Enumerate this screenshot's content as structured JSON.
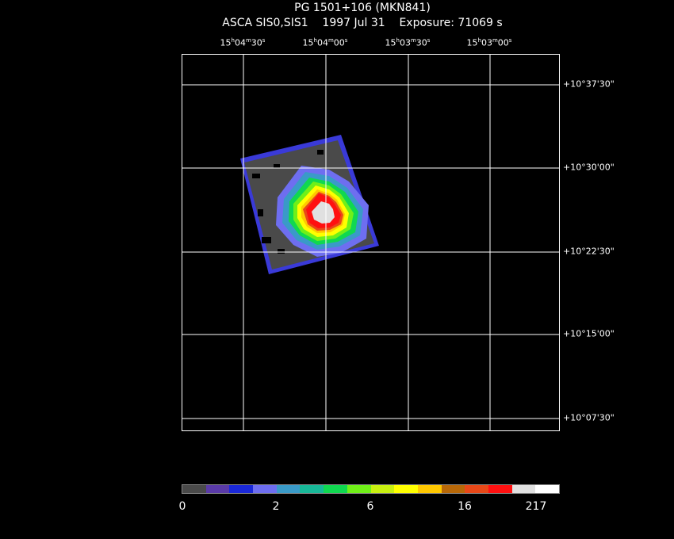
{
  "title_line1": "PG 1501+106 (MKN841)",
  "title_line2": "ASCA SIS0,SIS1    1997 Jul 31    Exposure: 71069 s",
  "ra_ticks": [
    {
      "h": "15",
      "m": "04",
      "s": "30"
    },
    {
      "h": "15",
      "m": "04",
      "s": "00"
    },
    {
      "h": "15",
      "m": "03",
      "s": "30"
    },
    {
      "h": "15",
      "m": "03",
      "s": "00"
    }
  ],
  "dec_ticks": [
    "+10°37'30\"",
    "+10°30'00\"",
    "+10°22'30\"",
    "+10°15'00\"",
    "+10°07'30\""
  ],
  "colorbar": {
    "colors": [
      "#4a4a4a",
      "#5a3aa8",
      "#1a28d8",
      "#6e6ef0",
      "#3a9ac8",
      "#18b898",
      "#10d850",
      "#70f018",
      "#c8f010",
      "#ffff00",
      "#ffc800",
      "#b86808",
      "#e84818",
      "#ff1010",
      "#e0e0e0",
      "#ffffff"
    ],
    "labels": [
      "0",
      "2",
      "6",
      "16",
      "217"
    ]
  }
}
